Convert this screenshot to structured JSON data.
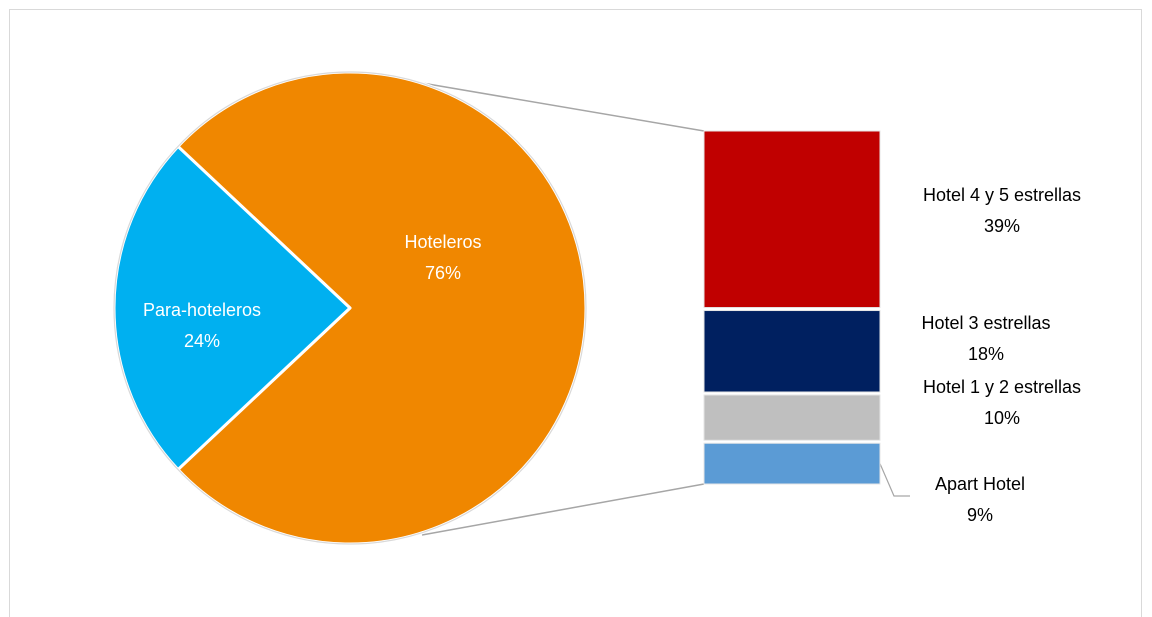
{
  "chart_data": {
    "type": "pie",
    "title": "",
    "pie": {
      "slices": [
        {
          "name": "Hoteleros",
          "value": 76,
          "value_label": "76%",
          "color": "#F08700"
        },
        {
          "name": "Para-hoteleros",
          "value": 24,
          "value_label": "24%",
          "color": "#00B0F0"
        }
      ]
    },
    "breakdown": {
      "parent": "Hoteleros",
      "segments": [
        {
          "name": "Hotel 4 y 5 estrellas",
          "value": 39,
          "value_label": "39%",
          "color": "#C00000"
        },
        {
          "name": "Hotel 3 estrellas",
          "value": 18,
          "value_label": "18%",
          "color": "#002060"
        },
        {
          "name": "Hotel 1 y 2 estrellas",
          "value": 10,
          "value_label": "10%",
          "color": "#BFBFBF"
        },
        {
          "name": "Apart Hotel",
          "value": 9,
          "value_label": "9%",
          "color": "#5B9BD5"
        }
      ]
    }
  }
}
